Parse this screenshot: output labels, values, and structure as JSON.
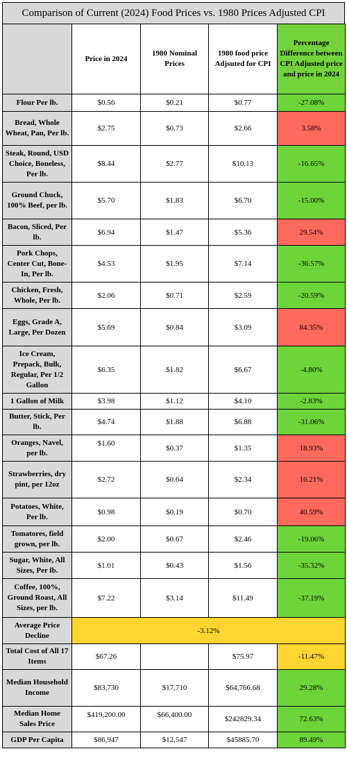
{
  "title": "Comparison of Current (2024) Food Prices vs. 1980 Prices Adjusted CPI",
  "headers": {
    "col1": "Price in 2024",
    "col2": "1980 Nominal Prices",
    "col3": "1980 food price Adjsuted for CPI",
    "col4": "Percentage Difference between CPI Adjusted price and price in 2024"
  },
  "colors": {
    "increase": "#ff6a5c",
    "decrease": "#6dd43a",
    "summary": "#ffd531",
    "label_bg": "#d9d9d9"
  },
  "rows": [
    {
      "item": "Flour Per lb.",
      "p2024": "$0.56",
      "p1980": "$0.21",
      "adj": "$0.77",
      "pct": "-27.08%"
    },
    {
      "item": "Bread, Whole Wheat, Pan, Per lb.",
      "p2024": "$2.75",
      "p1980": "$0.73",
      "adj": "$2.66",
      "pct": "3.58%"
    },
    {
      "item": "Steak, Round, USD Choice, Boneless, Per lb.",
      "p2024": "$8.44",
      "p1980": "$2.77",
      "adj": "$10.13",
      "pct": "-16.65%"
    },
    {
      "item": "Ground Chuck, 100% Beef, per lb.",
      "p2024": "$5.70",
      "p1980": "$1.83",
      "adj": "$6.70",
      "pct": "-15.00%"
    },
    {
      "item": "Bacon, Sliced, Per lb.",
      "p2024": "$6.94",
      "p1980": "$1.47",
      "adj": "$5.36",
      "pct": "29.54%"
    },
    {
      "item": "Pork Chops, Center Cut, Bone-In, Per lb.",
      "p2024": "$4.53",
      "p1980": "$1.95",
      "adj": "$7.14",
      "pct": "-36.57%"
    },
    {
      "item": "Chicken, Fresh, Whole, Per lb.",
      "p2024": "$2.06",
      "p1980": "$0.71",
      "adj": "$2.59",
      "pct": "-20.59%"
    },
    {
      "item": "Eggs, Grade A, Large, Per Dozen",
      "p2024": "$5.69",
      "p1980": "$0.84",
      "adj": "$3.09",
      "pct": "84.35%"
    },
    {
      "item": "Ice Cream, Prepack, Bulk, Regular, Per 1/2 Gallon",
      "p2024": "$6.35",
      "p1980": "$1.82",
      "adj": "$6.67",
      "pct": "-4.80%"
    },
    {
      "item": "1 Gallon of Milk",
      "p2024": "$3.98",
      "p1980": "$1.12",
      "adj": "$4.10",
      "pct": "-2.83%"
    },
    {
      "item": "Butter, Stick, Per lb.",
      "p2024": "$4.74",
      "p1980": "$1.88",
      "adj": "$6.88",
      "pct": "-31.06%"
    },
    {
      "item": "Oranges, Navel, per lb.",
      "p2024": "$1.60",
      "p1980": "$0.37",
      "adj": "$1.35",
      "pct": "18.93%"
    },
    {
      "item": "Strawberries, dry pint, per 12oz",
      "p2024": "$2.72",
      "p1980": "$0.64",
      "adj": "$2.34",
      "pct": "16.21%"
    },
    {
      "item": "Potatoes, White, Per lb.",
      "p2024": "$0.98",
      "p1980": "$0.19",
      "adj": "$0.70",
      "pct": "40.59%"
    },
    {
      "item": "Tomatores, field grown, per lb.",
      "p2024": "$2.00",
      "p1980": "$0.67",
      "adj": "$2.46",
      "pct": "-19.06%"
    },
    {
      "item": "Sugar, White, All Sizes, Per lb.",
      "p2024": "$1.01",
      "p1980": "$0.43",
      "adj": "$1.56",
      "pct": "-35.32%"
    },
    {
      "item": "Coffee, 100%, Ground Roast, All Sizes, per lb.",
      "p2024": "$7.22",
      "p1980": "$3.14",
      "adj": "$11.49",
      "pct": "-37.19%"
    }
  ],
  "average": {
    "item": "Average Price Decline",
    "value": "-3.12%"
  },
  "total": {
    "item": "Total Cost of All 17 Items",
    "p2024": "$67.26",
    "p1980": "",
    "adj": "$75.97",
    "pct": "-11.47%"
  },
  "extras": [
    {
      "item": "Median Household Income",
      "p2024": "$83,730",
      "p1980": "$17,710",
      "adj": "$64,766.68",
      "pct": "29.28%"
    },
    {
      "item": "Median Home Sales Price",
      "p2024": "$419,200.00",
      "p1980": "$66,400.00",
      "adj": "$242829.34",
      "pct": "72.63%"
    },
    {
      "item": "GDP Per Capita",
      "p2024": "$86,947",
      "p1980": "$12,547",
      "adj": "$45885.70",
      "pct": "89.49%"
    }
  ]
}
